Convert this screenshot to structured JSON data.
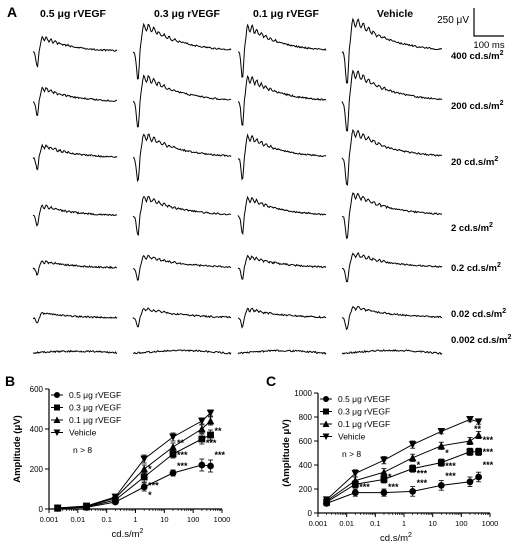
{
  "panelA": {
    "letter": "A",
    "columns": [
      "0.5 μg rVEGF",
      "0.3 μg rVEGF",
      "0.1 μg rVEGF",
      "Vehicle"
    ],
    "rows": [
      {
        "base": "400 cd.s/m",
        "sup": "2"
      },
      {
        "base": "200 cd.s/m",
        "sup": "2"
      },
      {
        "base": "20 cd.s/m",
        "sup": "2"
      },
      {
        "base": "2 cd.s/m",
        "sup": "2"
      },
      {
        "base": "0.2 cd.s/m",
        "sup": "2"
      },
      {
        "base": "0.02 cd.s/m",
        "sup": "2"
      },
      {
        "base": "0.002 cd.s/m",
        "sup": "2"
      }
    ],
    "scalebar": {
      "amplitude": "250 μV",
      "time": "100 ms"
    }
  },
  "chart_data": [
    {
      "panel": "B",
      "type": "line",
      "xscale": "log",
      "xlim": [
        0.001,
        1000
      ],
      "ylim": [
        0,
        600
      ],
      "x": [
        0.002,
        0.02,
        0.2,
        2,
        20,
        200,
        400
      ],
      "xticks": [
        "0.001",
        "0.01",
        "0.1",
        "1",
        "10",
        "100",
        "1000"
      ],
      "yticks": [
        "0",
        "200",
        "400",
        "600"
      ],
      "xlabel": {
        "base": "cd.s/m",
        "sup": "2"
      },
      "ylabel": "Amplitude (μV)",
      "note": "n > 8",
      "legend_position": "top-left",
      "series": [
        {
          "name": "0.5 μg rVEGF",
          "marker": "circle",
          "values": [
            3,
            8,
            35,
            110,
            180,
            220,
            215
          ],
          "err": [
            3,
            5,
            10,
            20,
            15,
            30,
            30
          ]
        },
        {
          "name": "0.3 μg rVEGF",
          "marker": "square",
          "values": [
            4,
            10,
            45,
            160,
            275,
            350,
            370
          ],
          "err": [
            3,
            5,
            10,
            25,
            20,
            25,
            25
          ]
        },
        {
          "name": "0.1 μg rVEGF",
          "marker": "triangle-up",
          "values": [
            5,
            12,
            55,
            200,
            310,
            400,
            440
          ],
          "err": [
            3,
            5,
            10,
            20,
            20,
            20,
            20
          ]
        },
        {
          "name": "Vehicle",
          "marker": "triangle-down",
          "values": [
            5,
            15,
            60,
            250,
            360,
            440,
            480
          ],
          "err": [
            3,
            5,
            10,
            20,
            20,
            15,
            15
          ]
        }
      ],
      "annotations": [
        {
          "text": "*",
          "x": 2,
          "y": 70
        },
        {
          "text": "*",
          "x": 2,
          "y": 200
        },
        {
          "text": "***",
          "x": 2,
          "y": 118
        },
        {
          "text": "***",
          "x": 20,
          "y": 215
        },
        {
          "text": "**",
          "x": 20,
          "y": 330
        },
        {
          "text": "***",
          "x": 20,
          "y": 270
        },
        {
          "text": "**",
          "x": 400,
          "y": 390
        },
        {
          "text": "***",
          "x": 200,
          "y": 330
        },
        {
          "text": "***",
          "x": 400,
          "y": 270
        }
      ]
    },
    {
      "panel": "C",
      "type": "line",
      "xscale": "log",
      "xlim": [
        0.001,
        1000
      ],
      "ylim": [
        0,
        1000
      ],
      "x": [
        0.002,
        0.02,
        0.2,
        2,
        20,
        200,
        400
      ],
      "xticks": [
        "0.001",
        "0.01",
        "0.1",
        "1",
        "10",
        "100",
        "1000"
      ],
      "yticks": [
        "0",
        "200",
        "400",
        "600",
        "800",
        "1000"
      ],
      "xlabel": {
        "base": "cd.s/m",
        "sup": "2"
      },
      "ylabel": "(Amplitude μV)",
      "note": "n > 8",
      "legend_position": "top-left",
      "series": [
        {
          "name": "0.5 μg rVEGF",
          "marker": "circle",
          "values": [
            80,
            170,
            170,
            180,
            230,
            260,
            300
          ],
          "err": [
            20,
            30,
            30,
            40,
            40,
            40,
            40
          ]
        },
        {
          "name": "0.3 μg rVEGF",
          "marker": "square",
          "values": [
            90,
            240,
            280,
            370,
            420,
            510,
            510
          ],
          "err": [
            20,
            30,
            30,
            30,
            30,
            30,
            30
          ]
        },
        {
          "name": "0.1 μg rVEGF",
          "marker": "triangle-up",
          "values": [
            100,
            270,
            340,
            460,
            560,
            600,
            650
          ],
          "err": [
            20,
            30,
            30,
            30,
            30,
            30,
            30
          ]
        },
        {
          "name": "Vehicle",
          "marker": "triangle-down",
          "values": [
            110,
            330,
            440,
            570,
            680,
            780,
            760
          ],
          "err": [
            20,
            30,
            30,
            30,
            20,
            20,
            20
          ]
        }
      ],
      "annotations": [
        {
          "text": "*",
          "x": 0.2,
          "y": 300
        },
        {
          "text": "***",
          "x": 0.2,
          "y": 215
        },
        {
          "text": "***",
          "x": 0.02,
          "y": 215
        },
        {
          "text": "*",
          "x": 2,
          "y": 400
        },
        {
          "text": "***",
          "x": 2,
          "y": 330
        },
        {
          "text": "***",
          "x": 2,
          "y": 250
        },
        {
          "text": "*",
          "x": 20,
          "y": 500
        },
        {
          "text": "***",
          "x": 20,
          "y": 390
        },
        {
          "text": "***",
          "x": 20,
          "y": 310
        },
        {
          "text": "**",
          "x": 200,
          "y": 700
        },
        {
          "text": "***",
          "x": 400,
          "y": 610
        },
        {
          "text": "***",
          "x": 400,
          "y": 510
        },
        {
          "text": "***",
          "x": 400,
          "y": 400
        }
      ]
    }
  ]
}
